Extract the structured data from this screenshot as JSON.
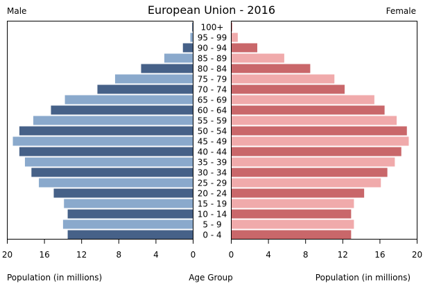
{
  "chart_data": {
    "type": "bar",
    "orientation": "horizontal-pyramid",
    "title": "European Union - 2016",
    "left_label": "Male",
    "right_label": "Female",
    "xlabel_left": "Population (in millions)",
    "xlabel_center": "Age Group",
    "xlabel_right": "Population (in millions)",
    "xlim": [
      0,
      20
    ],
    "xticks": [
      20,
      16,
      12,
      8,
      4,
      0
    ],
    "xticks_right": [
      0,
      4,
      8,
      12,
      16,
      20
    ],
    "grid": false,
    "categories": [
      "0 - 4",
      "5 - 9",
      "10 - 14",
      "15 - 19",
      "20 - 24",
      "25 - 29",
      "30 - 34",
      "35 - 39",
      "40 - 44",
      "45 - 49",
      "50 - 54",
      "55 - 59",
      "60 - 64",
      "65 - 69",
      "70 - 74",
      "75 - 79",
      "80 - 84",
      "85 - 89",
      "90 - 94",
      "95 - 99",
      "100+"
    ],
    "series": [
      {
        "name": "Male",
        "colors": [
          "#466188",
          "#8aa9cc"
        ],
        "values": [
          13.5,
          14.0,
          13.5,
          13.9,
          15.0,
          16.6,
          17.4,
          18.1,
          18.7,
          19.4,
          18.7,
          17.2,
          15.3,
          13.8,
          10.3,
          8.4,
          5.6,
          3.1,
          1.1,
          0.3,
          0.1
        ]
      },
      {
        "name": "Female",
        "colors": [
          "#c9676a",
          "#f0aaab"
        ],
        "values": [
          12.9,
          13.2,
          12.9,
          13.2,
          14.3,
          16.1,
          16.8,
          17.6,
          18.3,
          19.1,
          18.9,
          17.8,
          16.5,
          15.4,
          12.2,
          11.1,
          8.5,
          5.7,
          2.8,
          0.7,
          0.1
        ]
      }
    ]
  }
}
